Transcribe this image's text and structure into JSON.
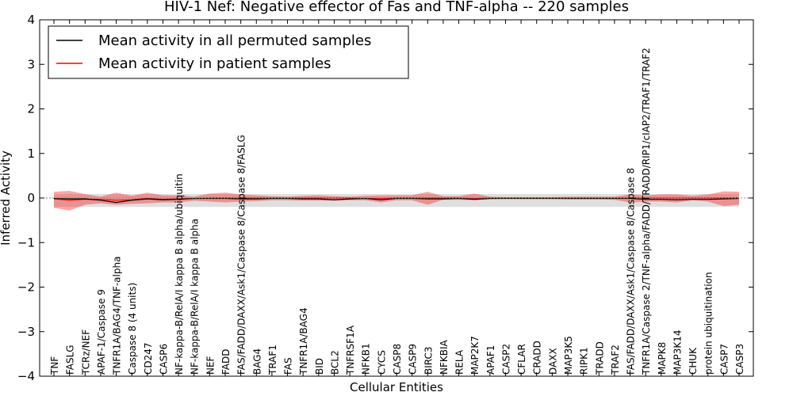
{
  "chart_data": {
    "type": "line",
    "title": "HIV-1 Nef: Negative effector of Fas and TNF-alpha -- 220 samples",
    "xlabel": "Cellular Entities",
    "ylabel": "Inferred Activity",
    "ylim": [
      -4,
      4
    ],
    "yticks": [
      {
        "value": 4,
        "label": "4"
      },
      {
        "value": 3,
        "label": "3"
      },
      {
        "value": 2,
        "label": "2"
      },
      {
        "value": 1,
        "label": "1"
      },
      {
        "value": 0,
        "label": "0"
      },
      {
        "value": -1,
        "label": "−1"
      },
      {
        "value": -2,
        "label": "−2"
      },
      {
        "value": -3,
        "label": "−3"
      },
      {
        "value": -4,
        "label": "−4"
      }
    ],
    "legend": {
      "placement": "top-left",
      "entries": [
        {
          "label": "Mean activity in all permuted samples",
          "color": "#000000"
        },
        {
          "label": "Mean activity in patient samples",
          "color": "#ff0000"
        }
      ]
    },
    "categories": [
      "TNF",
      "FASLG",
      "TCRz/NEF",
      "APAF-1/Caspase 9",
      "TNFR1A/BAG4/TNF-alpha",
      "Caspase 8 (4 units)",
      "CD247",
      "CASP6",
      "NF-kappa-B/RelA/I kappa B alpha/ubiquitin",
      "NF-kappa-B/RelA/I kappa B alpha",
      "NEF",
      "FADD",
      "FAS/FADD/DAXX/Ask1/Caspase 8/Caspase 8/FASLG",
      "BAG4",
      "TRAF1",
      "FAS",
      "TNFR1A/BAG4",
      "BID",
      "BCL2",
      "TNFRSF1A",
      "NFKB1",
      "CYCS",
      "CASP8",
      "CASP9",
      "BIRC3",
      "NFKBIA",
      "RELA",
      "MAP2K7",
      "APAF1",
      "CASP2",
      "CFLAR",
      "CRADD",
      "DAXX",
      "MAP3K5",
      "RIPK1",
      "TRADD",
      "TRAF2",
      "FAS/FADD/DAXX/Ask1/Caspase 8/Caspase 8",
      "TNFR1A/Caspase 2/TNF-alpha/FADD/TRADD/RIP1/cIAP2/TRAF1/TRAF2",
      "MAPK8",
      "MAP3K14",
      "CHUK",
      "protein ubiquitination",
      "CASP7",
      "CASP3"
    ],
    "series": [
      {
        "name": "Mean activity in all permuted samples",
        "color": "#000000",
        "values": [
          -0.01,
          -0.02,
          -0.02,
          -0.05,
          -0.1,
          -0.05,
          -0.02,
          -0.04,
          -0.03,
          -0.01,
          -0.01,
          -0.01,
          -0.02,
          -0.02,
          -0.01,
          -0.01,
          -0.02,
          -0.02,
          -0.04,
          -0.02,
          -0.01,
          -0.04,
          -0.01,
          -0.01,
          -0.02,
          -0.02,
          -0.01,
          -0.03,
          -0.01,
          -0.01,
          -0.01,
          -0.01,
          -0.01,
          -0.01,
          -0.01,
          -0.01,
          -0.01,
          -0.01,
          -0.03,
          -0.03,
          -0.04,
          -0.03,
          -0.03,
          -0.02,
          -0.01
        ],
        "band_upper": [
          0.08,
          0.09,
          0.09,
          0.09,
          0.09,
          0.09,
          0.09,
          0.09,
          0.09,
          0.09,
          0.09,
          0.09,
          0.09,
          0.09,
          0.09,
          0.09,
          0.09,
          0.09,
          0.09,
          0.09,
          0.09,
          0.09,
          0.09,
          0.09,
          0.09,
          0.09,
          0.09,
          0.09,
          0.09,
          0.09,
          0.09,
          0.09,
          0.09,
          0.09,
          0.09,
          0.09,
          0.09,
          0.09,
          0.09,
          0.09,
          0.09,
          0.09,
          0.09,
          0.09,
          0.09
        ],
        "band_lower": [
          -0.2,
          -0.2,
          -0.2,
          -0.2,
          -0.2,
          -0.2,
          -0.2,
          -0.2,
          -0.2,
          -0.2,
          -0.2,
          -0.2,
          -0.2,
          -0.2,
          -0.2,
          -0.2,
          -0.2,
          -0.2,
          -0.2,
          -0.2,
          -0.2,
          -0.2,
          -0.2,
          -0.2,
          -0.2,
          -0.2,
          -0.2,
          -0.2,
          -0.2,
          -0.2,
          -0.2,
          -0.2,
          -0.2,
          -0.2,
          -0.2,
          -0.2,
          -0.2,
          -0.2,
          -0.2,
          -0.2,
          -0.2,
          -0.2,
          -0.2,
          -0.2,
          -0.2
        ]
      },
      {
        "name": "Mean activity in patient samples",
        "color": "#ff0000",
        "values": [
          -0.02,
          -0.05,
          -0.03,
          -0.03,
          -0.05,
          -0.04,
          -0.01,
          -0.03,
          -0.02,
          -0.01,
          0.0,
          0.0,
          0.0,
          0.0,
          0.0,
          0.0,
          0.0,
          0.0,
          0.0,
          0.0,
          -0.01,
          -0.01,
          0.0,
          0.0,
          0.0,
          0.0,
          0.0,
          -0.01,
          0.0,
          0.0,
          0.0,
          0.0,
          0.0,
          0.0,
          0.0,
          0.0,
          0.0,
          0.0,
          0.0,
          0.0,
          0.0,
          0.0,
          0.0,
          0.0,
          0.0
        ],
        "band_upper": [
          0.14,
          0.16,
          0.09,
          0.03,
          0.12,
          0.05,
          0.12,
          0.06,
          0.06,
          0.03,
          0.1,
          0.12,
          0.08,
          0.06,
          0.04,
          0.03,
          0.05,
          0.06,
          0.04,
          0.03,
          0.05,
          0.06,
          0.06,
          0.06,
          0.14,
          0.04,
          0.04,
          0.1,
          0.03,
          0.02,
          0.02,
          0.02,
          0.02,
          0.03,
          0.03,
          0.03,
          0.03,
          0.08,
          0.06,
          0.08,
          0.08,
          0.05,
          0.08,
          0.15,
          0.14
        ],
        "band_lower": [
          -0.22,
          -0.28,
          -0.15,
          -0.12,
          -0.15,
          -0.13,
          -0.12,
          -0.1,
          -0.1,
          -0.06,
          -0.08,
          -0.1,
          -0.08,
          -0.07,
          -0.05,
          -0.05,
          -0.06,
          -0.06,
          -0.06,
          -0.05,
          -0.05,
          -0.1,
          -0.05,
          -0.05,
          -0.15,
          -0.04,
          -0.04,
          -0.05,
          -0.03,
          -0.02,
          -0.02,
          -0.02,
          -0.02,
          -0.03,
          -0.03,
          -0.03,
          -0.04,
          -0.1,
          -0.08,
          -0.08,
          -0.1,
          -0.05,
          -0.08,
          -0.18,
          -0.15
        ]
      }
    ]
  }
}
